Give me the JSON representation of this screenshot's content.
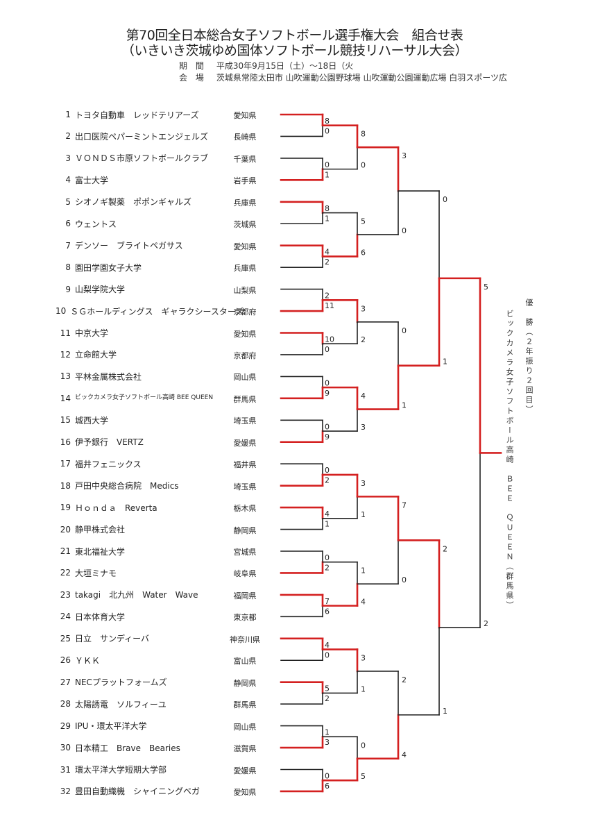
{
  "header": {
    "title": "第70回全日本総合女子ソフトボール選手権大会　組合せ表",
    "subtitle": "（いきいき茨城ゆめ国体ソフトボール競技リハーサル大会）",
    "period_label": "期 間",
    "period_value": "平成30年9月15日（土）～18日（火",
    "venue_label": "会 場",
    "venue_value": "茨城県常陸太田市 山吹運動公園野球場 山吹運動公園運動広場 白羽スポーツ広"
  },
  "colors": {
    "winner_line": "#d42020",
    "loser_line": "#222222"
  },
  "teams": [
    {
      "no": "1",
      "name": "トヨタ自動車　レッドテリアーズ",
      "pref": "愛知県"
    },
    {
      "no": "2",
      "name": "出口医院ペパーミントエンジェルズ",
      "pref": "長崎県"
    },
    {
      "no": "3",
      "name": "ＶＯＮＤＳ市原ソフトボールクラブ",
      "pref": "千葉県"
    },
    {
      "no": "4",
      "name": "富士大学",
      "pref": "岩手県"
    },
    {
      "no": "5",
      "name": "シオノギ製薬　ポポンギャルズ",
      "pref": "兵庫県"
    },
    {
      "no": "6",
      "name": "ウェントス",
      "pref": "茨城県"
    },
    {
      "no": "7",
      "name": "デンソー　ブライトペガサス",
      "pref": "愛知県"
    },
    {
      "no": "8",
      "name": "園田学園女子大学",
      "pref": "兵庫県"
    },
    {
      "no": "9",
      "name": "山梨学院大学",
      "pref": "山梨県"
    },
    {
      "no": "10",
      "name": "ＳＧホールディングス　ギャラクシースターズ",
      "pref": "京都府"
    },
    {
      "no": "11",
      "name": "中京大学",
      "pref": "愛知県"
    },
    {
      "no": "12",
      "name": "立命館大学",
      "pref": "京都府"
    },
    {
      "no": "13",
      "name": "平林金属株式会社",
      "pref": "岡山県"
    },
    {
      "no": "14",
      "name": "ビックカメラ女子ソフトボール高崎 BEE QUEEN",
      "pref": "群馬県"
    },
    {
      "no": "15",
      "name": "城西大学",
      "pref": "埼玉県"
    },
    {
      "no": "16",
      "name": "伊予銀行　VERTZ",
      "pref": "愛媛県"
    },
    {
      "no": "17",
      "name": "福井フェニックス",
      "pref": "福井県"
    },
    {
      "no": "18",
      "name": "戸田中央総合病院　Medics",
      "pref": "埼玉県"
    },
    {
      "no": "19",
      "name": "Ｈｏｎｄａ　Reverta",
      "pref": "栃木県"
    },
    {
      "no": "20",
      "name": "静甲株式会社",
      "pref": "静岡県"
    },
    {
      "no": "21",
      "name": "東北福祉大学",
      "pref": "宮城県"
    },
    {
      "no": "22",
      "name": "大垣ミナモ",
      "pref": "岐阜県"
    },
    {
      "no": "23",
      "name": "takagi　北九州　Water　Wave",
      "pref": "福岡県"
    },
    {
      "no": "24",
      "name": "日本体育大学",
      "pref": "東京都"
    },
    {
      "no": "25",
      "name": "日立　サンディーバ",
      "pref": "神奈川県"
    },
    {
      "no": "26",
      "name": "ＹＫＫ",
      "pref": "富山県"
    },
    {
      "no": "27",
      "name": "NECプラットフォームズ",
      "pref": "静岡県"
    },
    {
      "no": "28",
      "name": "太陽誘電　ソルフィーユ",
      "pref": "群馬県"
    },
    {
      "no": "29",
      "name": "IPU・環太平洋大学",
      "pref": "岡山県"
    },
    {
      "no": "30",
      "name": "日本精工　Brave　Bearies",
      "pref": "滋賀県"
    },
    {
      "no": "31",
      "name": "環太平洋大学短期大学部",
      "pref": "愛媛県"
    },
    {
      "no": "32",
      "name": "豊田自動織機　シャイニングベガ",
      "pref": "愛知県"
    }
  ],
  "rounds": [
    [
      [
        8,
        0
      ],
      [
        0,
        1
      ],
      [
        8,
        1
      ],
      [
        4,
        2
      ],
      [
        2,
        11
      ],
      [
        10,
        0
      ],
      [
        0,
        9
      ],
      [
        0,
        9
      ],
      [
        0,
        2
      ],
      [
        4,
        1
      ],
      [
        0,
        2
      ],
      [
        7,
        6
      ],
      [
        4,
        0
      ],
      [
        5,
        2
      ],
      [
        1,
        3
      ],
      [
        0,
        6
      ]
    ],
    [
      [
        8,
        0
      ],
      [
        5,
        6
      ],
      [
        3,
        2
      ],
      [
        4,
        3
      ],
      [
        3,
        1
      ],
      [
        1,
        4
      ],
      [
        3,
        1
      ],
      [
        0,
        5
      ]
    ],
    [
      [
        3,
        0
      ],
      [
        0,
        1
      ],
      [
        7,
        0
      ],
      [
        2,
        4
      ]
    ],
    [
      [
        0,
        1
      ],
      [
        2,
        1
      ]
    ],
    [
      [
        5,
        2
      ]
    ]
  ],
  "champion": {
    "label": "優　勝（２年振り２回目）",
    "team": "ビックカメラ女子ソフトボール高崎　ＢＥＥ　ＱＵＥＥＮ（群馬県）"
  }
}
